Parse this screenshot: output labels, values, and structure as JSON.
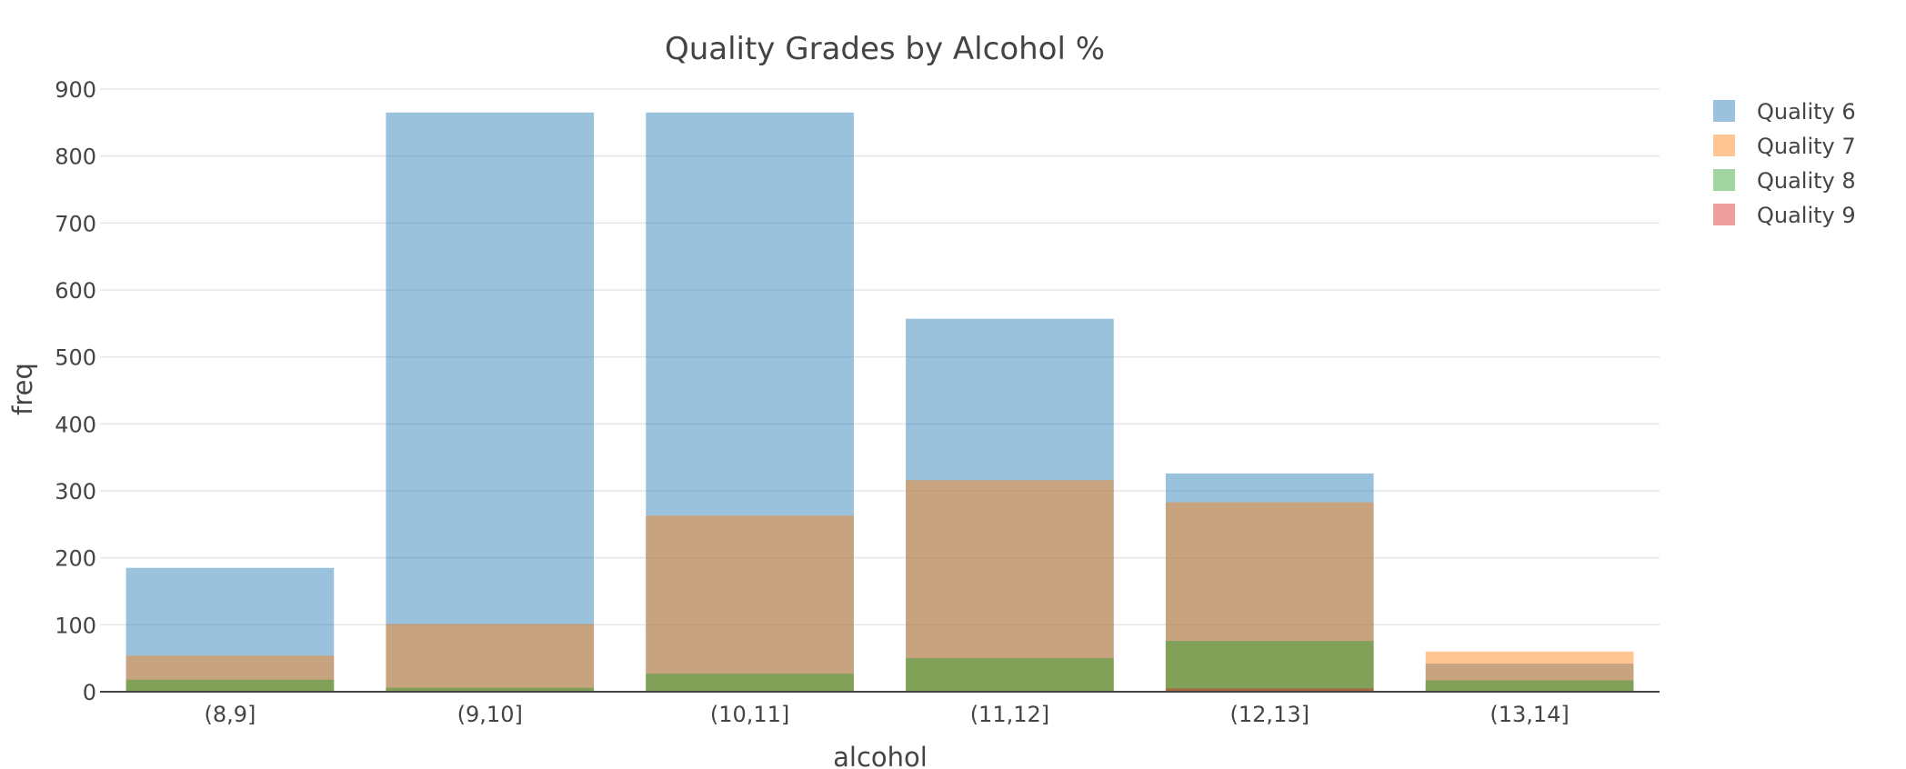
{
  "chart_data": {
    "type": "bar",
    "barmode": "overlay",
    "title": "Quality Grades by Alcohol %",
    "xlabel": "alcohol",
    "ylabel": "freq",
    "categories": [
      "(8,9]",
      "(9,10]",
      "(10,11]",
      "(11,12]",
      "(12,13]",
      "(13,14]"
    ],
    "ylim": [
      0,
      900
    ],
    "yticks": [
      0,
      100,
      200,
      300,
      400,
      500,
      600,
      700,
      800,
      900
    ],
    "grid": true,
    "legend_position": "top-right",
    "series": [
      {
        "name": "Quality 6",
        "color": "#1f77b4",
        "values": [
          185,
          865,
          865,
          557,
          326,
          42
        ]
      },
      {
        "name": "Quality 7",
        "color": "#ff7f0e",
        "values": [
          54,
          101,
          263,
          316,
          283,
          60
        ]
      },
      {
        "name": "Quality 8",
        "color": "#2ca02c",
        "values": [
          18,
          6,
          27,
          50,
          76,
          17
        ]
      },
      {
        "name": "Quality 9",
        "color": "#d62728",
        "values": [
          0,
          0,
          0,
          0,
          5,
          0
        ]
      }
    ]
  }
}
